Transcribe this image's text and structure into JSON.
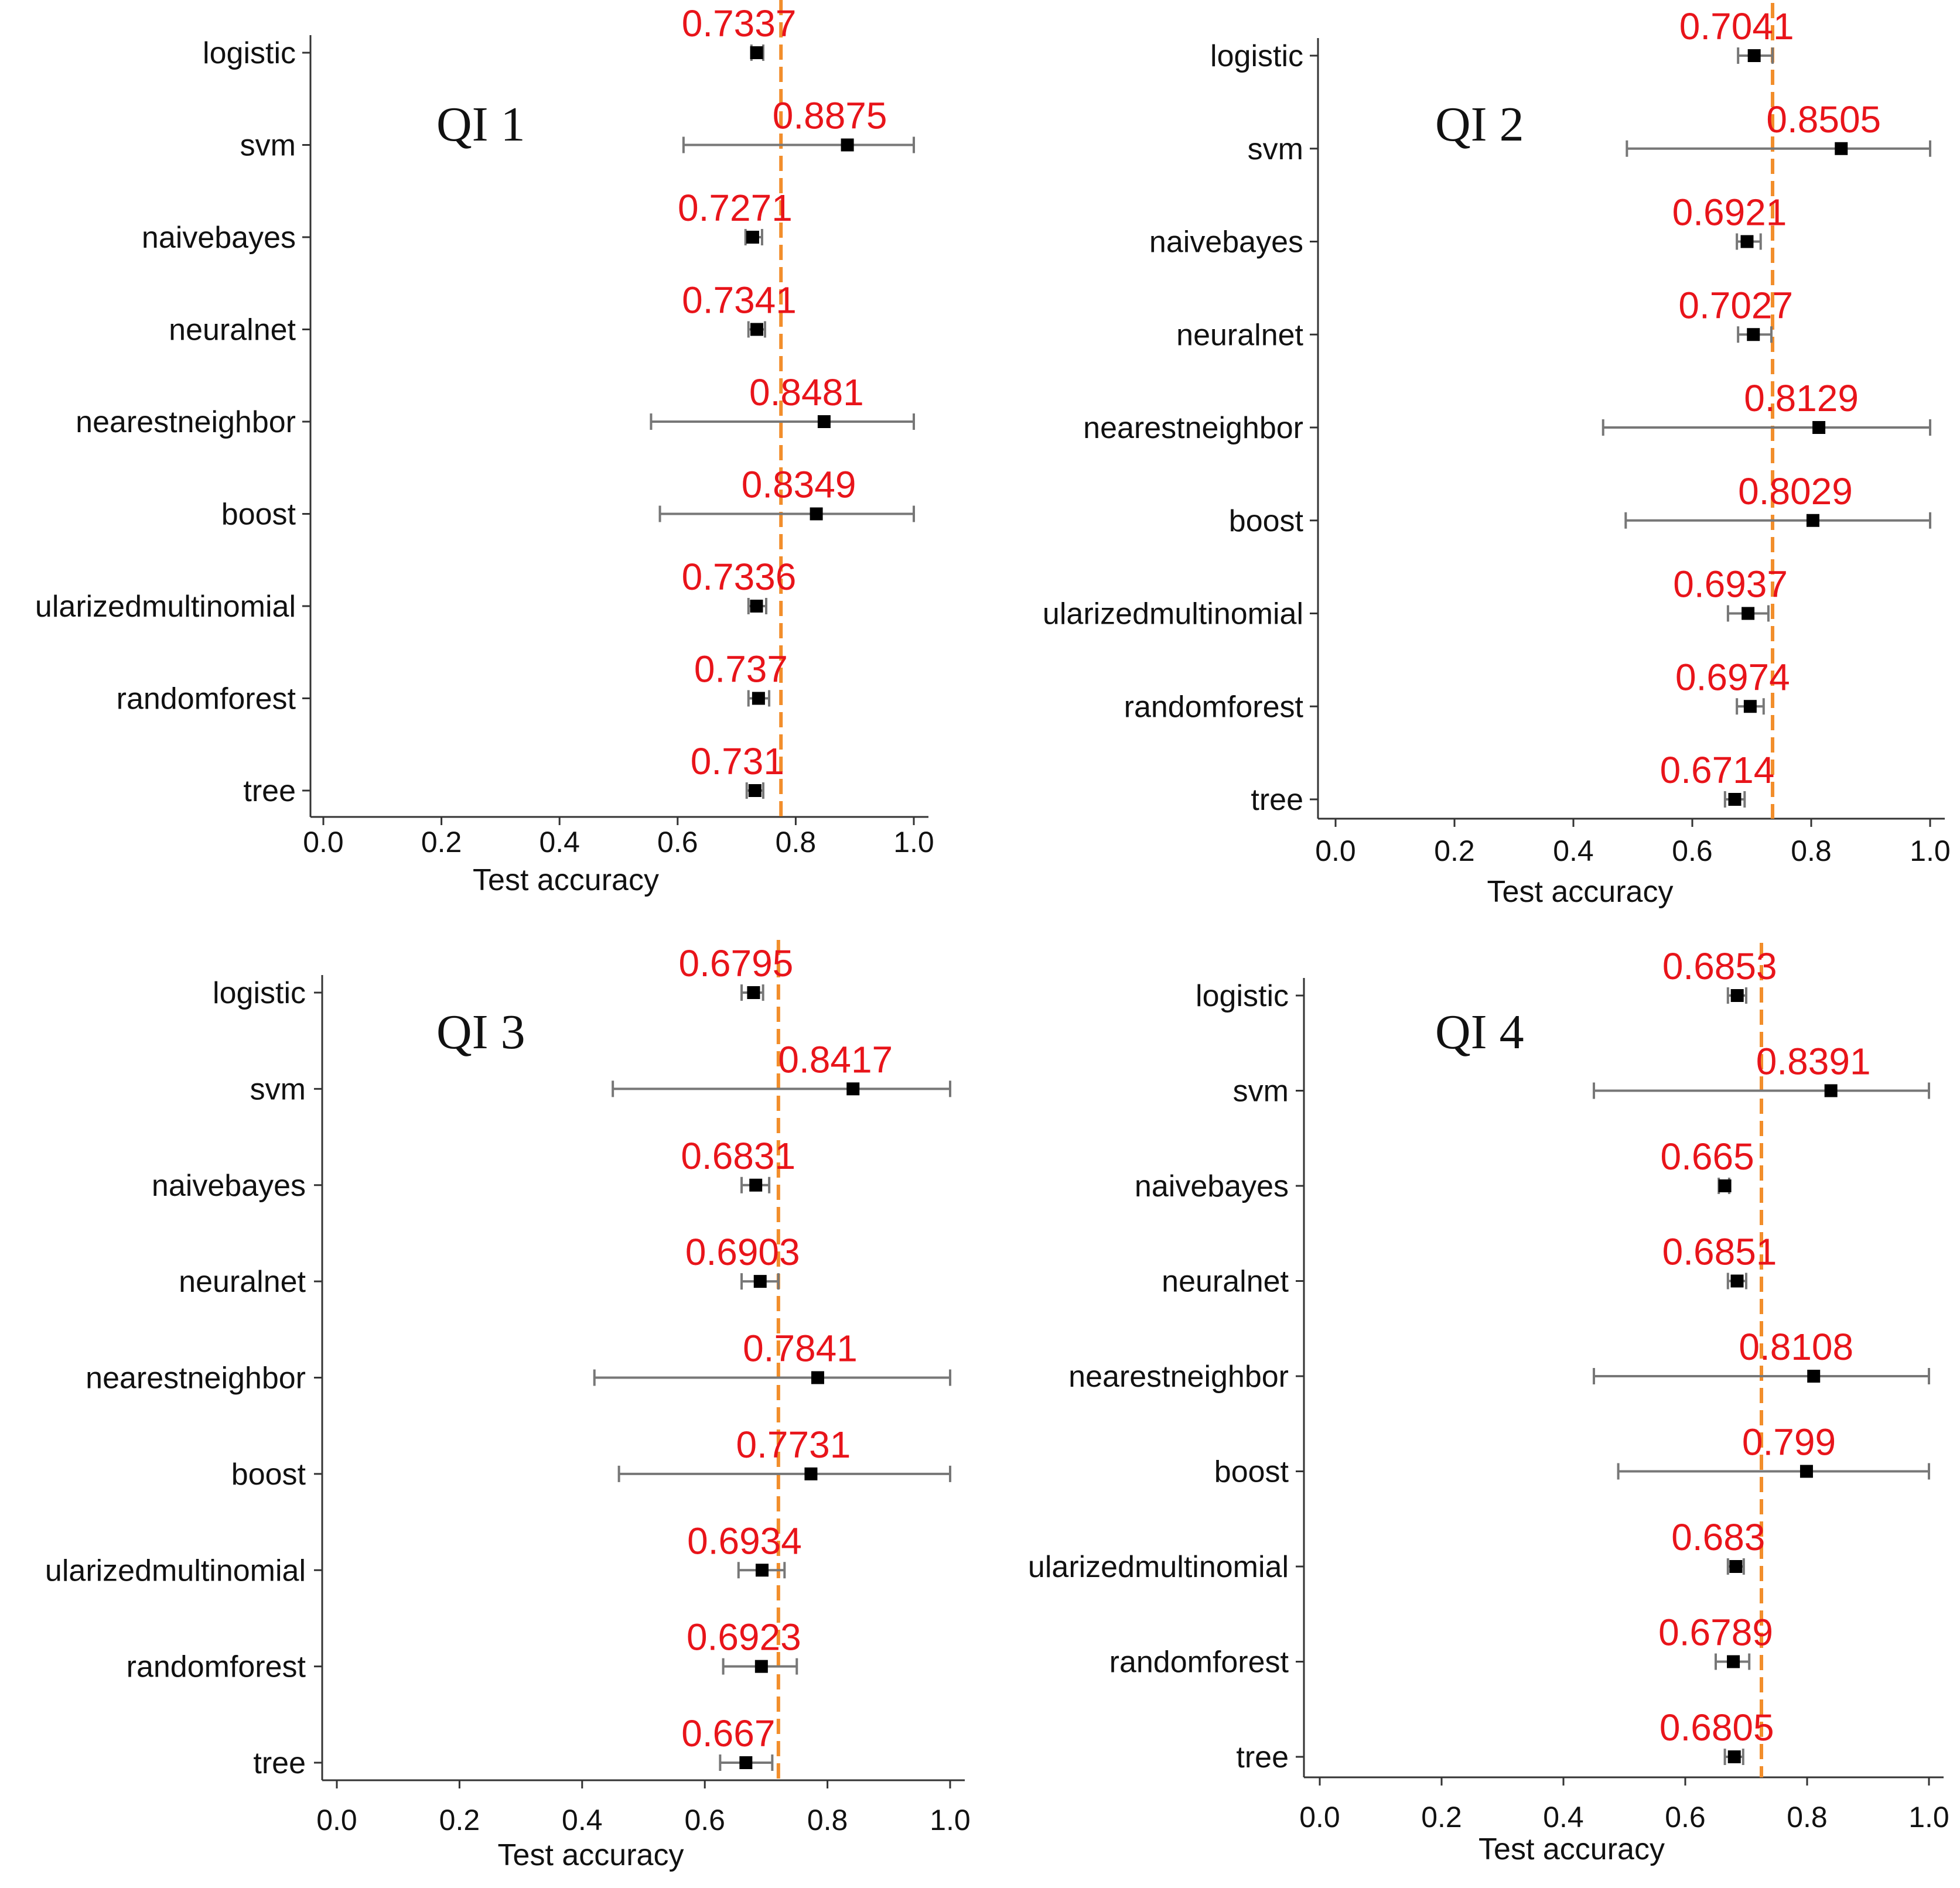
{
  "chart_data": [
    {
      "type": "scatter",
      "title": "QI 1",
      "xlabel": "Test accuracy",
      "ylabel": "",
      "xlim": [
        0,
        1
      ],
      "xticks": [
        "0.0",
        "0.2",
        "0.4",
        "0.6",
        "0.8",
        "1.0"
      ],
      "reference_line": 0.775,
      "categories": [
        "logistic",
        "svm",
        "naivebayes",
        "neuralnet",
        "nearestneighbor",
        "boost",
        "ularizedmultinomial",
        "randomforest",
        "tree"
      ],
      "values": [
        0.7337,
        0.8875,
        0.7271,
        0.7341,
        0.8481,
        0.8349,
        0.7336,
        0.737,
        0.731
      ],
      "value_labels": [
        "0.7337",
        "0.8875",
        "0.7271",
        "0.7341",
        "0.8481",
        "0.8349",
        "0.7336",
        "0.737",
        "0.731"
      ],
      "lower": [
        0.725,
        0.61,
        0.715,
        0.72,
        0.555,
        0.57,
        0.72,
        0.72,
        0.717
      ],
      "upper": [
        0.745,
        1.0,
        0.743,
        0.748,
        1.0,
        1.0,
        0.75,
        0.755,
        0.745
      ]
    },
    {
      "type": "scatter",
      "title": "QI 2",
      "xlabel": "Test accuracy",
      "ylabel": "",
      "xlim": [
        0,
        1
      ],
      "xticks": [
        "0.0",
        "0.2",
        "0.4",
        "0.6",
        "0.8",
        "1.0"
      ],
      "reference_line": 0.735,
      "categories": [
        "logistic",
        "svm",
        "naivebayes",
        "neuralnet",
        "nearestneighbor",
        "boost",
        "ularizedmultinomial",
        "randomforest",
        "tree"
      ],
      "values": [
        0.7041,
        0.8505,
        0.6921,
        0.7027,
        0.8129,
        0.8029,
        0.6937,
        0.6974,
        0.6714
      ],
      "value_labels": [
        "0.7041",
        "0.8505",
        "0.6921",
        "0.7027",
        "0.8129",
        "0.8029",
        "0.6937",
        "0.6974",
        "0.6714"
      ],
      "lower": [
        0.677,
        0.49,
        0.675,
        0.677,
        0.45,
        0.488,
        0.66,
        0.675,
        0.655
      ],
      "upper": [
        0.735,
        1.0,
        0.715,
        0.733,
        1.0,
        1.0,
        0.728,
        0.72,
        0.688
      ]
    },
    {
      "type": "scatter",
      "title": "QI 3",
      "xlabel": "Test accuracy",
      "ylabel": "",
      "xlim": [
        0,
        1
      ],
      "xticks": [
        "0.0",
        "0.2",
        "0.4",
        "0.6",
        "0.8",
        "1.0"
      ],
      "reference_line": 0.72,
      "categories": [
        "logistic",
        "svm",
        "naivebayes",
        "neuralnet",
        "nearestneighbor",
        "boost",
        "ularizedmultinomial",
        "randomforest",
        "tree"
      ],
      "values": [
        0.6795,
        0.8417,
        0.6831,
        0.6903,
        0.7841,
        0.7731,
        0.6934,
        0.6923,
        0.667
      ],
      "value_labels": [
        "0.6795",
        "0.8417",
        "0.6831",
        "0.6903",
        "0.7841",
        "0.7731",
        "0.6934",
        "0.6923",
        "0.667"
      ],
      "lower": [
        0.66,
        0.45,
        0.66,
        0.66,
        0.42,
        0.46,
        0.655,
        0.63,
        0.625
      ],
      "upper": [
        0.695,
        1.0,
        0.705,
        0.72,
        1.0,
        1.0,
        0.73,
        0.75,
        0.71
      ]
    },
    {
      "type": "scatter",
      "title": "QI 4",
      "xlabel": "Test accuracy",
      "ylabel": "",
      "xlim": [
        0,
        1
      ],
      "xticks": [
        "0.0",
        "0.2",
        "0.4",
        "0.6",
        "0.8",
        "1.0"
      ],
      "reference_line": 0.725,
      "categories": [
        "logistic",
        "svm",
        "naivebayes",
        "neuralnet",
        "nearestneighbor",
        "boost",
        "ularizedmultinomial",
        "randomforest",
        "tree"
      ],
      "values": [
        0.6853,
        0.8391,
        0.665,
        0.6851,
        0.8108,
        0.799,
        0.683,
        0.6789,
        0.6805
      ],
      "value_labels": [
        "0.6853",
        "0.8391",
        "0.665",
        "0.6851",
        "0.8108",
        "0.799",
        "0.683",
        "0.6789",
        "0.6805"
      ],
      "lower": [
        0.67,
        0.45,
        0.655,
        0.67,
        0.45,
        0.49,
        0.67,
        0.65,
        0.665
      ],
      "upper": [
        0.7,
        1.0,
        0.672,
        0.7,
        1.0,
        1.0,
        0.696,
        0.705,
        0.695
      ]
    }
  ],
  "colors": {
    "reference_line": "#f28e2b",
    "value_label": "#e8141a",
    "point": "#000000",
    "errorbar": "#777777",
    "axis": "#333333"
  }
}
